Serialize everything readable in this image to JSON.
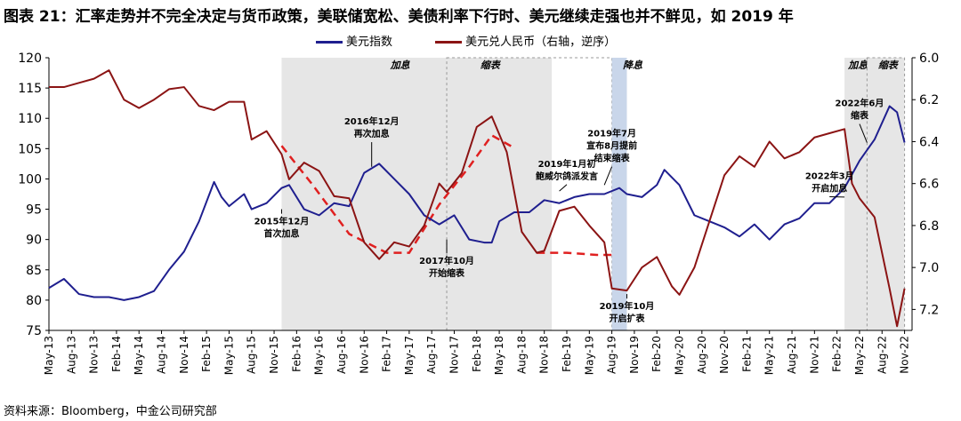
{
  "title": "图表 21：汇率走势并不完全决定与货币政策，美联储宽松、美债利率下行时、美元继续走强也并不鲜见，如 2019 年",
  "source": "资料来源：Bloomberg，中金公司研究部",
  "colors": {
    "usd_index": "#1f1f8f",
    "usdcny": "#8b1414",
    "fit": "#e02020",
    "shade_gray": "#e6e6e6",
    "shade_blue": "#c9d6ea"
  },
  "chart_data": {
    "type": "line",
    "x_ticks": [
      "May-13",
      "Aug-13",
      "Nov-13",
      "Feb-14",
      "May-14",
      "Aug-14",
      "Nov-14",
      "Feb-15",
      "May-15",
      "Aug-15",
      "Nov-15",
      "Feb-16",
      "May-16",
      "Aug-16",
      "Nov-16",
      "Feb-17",
      "May-17",
      "Aug-17",
      "Nov-17",
      "Feb-18",
      "May-18",
      "Aug-18",
      "Nov-18",
      "Feb-19",
      "May-19",
      "Aug-19",
      "Nov-19",
      "Feb-20",
      "May-20",
      "Aug-20",
      "Nov-20",
      "Feb-21",
      "May-21",
      "Aug-21",
      "Nov-21",
      "Feb-22",
      "May-22",
      "Aug-22",
      "Nov-22"
    ],
    "y_left": {
      "range": [
        75,
        120
      ],
      "ticks": [
        "120",
        "115",
        "110",
        "105",
        "100",
        "95",
        "90",
        "85",
        "80",
        "75"
      ]
    },
    "y_right": {
      "range": [
        6.0,
        7.3
      ],
      "inverted": true,
      "ticks": [
        "6.0",
        "6.2",
        "6.4",
        "6.6",
        "6.8",
        "7.0",
        "7.2"
      ]
    },
    "legend": [
      "美元指数",
      "美元兑人民币（右轴，逆序）"
    ],
    "series": [
      {
        "name": "美元指数",
        "axis": "left",
        "points": [
          [
            "May-13",
            82
          ],
          [
            "Jul-13",
            83.5
          ],
          [
            "Sep-13",
            81
          ],
          [
            "Nov-13",
            80.5
          ],
          [
            "Jan-14",
            80.5
          ],
          [
            "Mar-14",
            80
          ],
          [
            "May-14",
            80.5
          ],
          [
            "Jul-14",
            81.5
          ],
          [
            "Sep-14",
            85
          ],
          [
            "Nov-14",
            88
          ],
          [
            "Jan-15",
            93
          ],
          [
            "Mar-15",
            99.5
          ],
          [
            "Apr-15",
            97
          ],
          [
            "May-15",
            95.5
          ],
          [
            "Jul-15",
            97.5
          ],
          [
            "Aug-15",
            95
          ],
          [
            "Oct-15",
            96
          ],
          [
            "Dec-15",
            98.5
          ],
          [
            "Jan-16",
            99
          ],
          [
            "Mar-16",
            95
          ],
          [
            "May-16",
            94
          ],
          [
            "Jul-16",
            96
          ],
          [
            "Sep-16",
            95.5
          ],
          [
            "Nov-16",
            101
          ],
          [
            "Jan-17",
            102.5
          ],
          [
            "Mar-17",
            100
          ],
          [
            "May-17",
            97.5
          ],
          [
            "Jul-17",
            94
          ],
          [
            "Sep-17",
            92.5
          ],
          [
            "Nov-17",
            94
          ],
          [
            "Jan-18",
            90
          ],
          [
            "Mar-18",
            89.5
          ],
          [
            "Apr-18",
            89.5
          ],
          [
            "May-18",
            93
          ],
          [
            "Jul-18",
            94.5
          ],
          [
            "Sep-18",
            94.5
          ],
          [
            "Nov-18",
            96.5
          ],
          [
            "Jan-19",
            96
          ],
          [
            "Mar-19",
            97
          ],
          [
            "May-19",
            97.5
          ],
          [
            "Jul-19",
            97.5
          ],
          [
            "Sep-19",
            98.5
          ],
          [
            "Oct-19",
            97.5
          ],
          [
            "Dec-19",
            97
          ],
          [
            "Feb-20",
            99
          ],
          [
            "Mar-20",
            101.5
          ],
          [
            "May-20",
            99
          ],
          [
            "Jul-20",
            94
          ],
          [
            "Sep-20",
            93
          ],
          [
            "Nov-20",
            92
          ],
          [
            "Jan-21",
            90.5
          ],
          [
            "Mar-21",
            92.5
          ],
          [
            "May-21",
            90
          ],
          [
            "Jul-21",
            92.5
          ],
          [
            "Sep-21",
            93.5
          ],
          [
            "Nov-21",
            96
          ],
          [
            "Jan-22",
            96
          ],
          [
            "Mar-22",
            98.5
          ],
          [
            "May-22",
            103
          ],
          [
            "Jul-22",
            106.5
          ],
          [
            "Sep-22",
            112
          ],
          [
            "Oct-22",
            111
          ],
          [
            "Nov-22",
            106
          ]
        ]
      },
      {
        "name": "美元兑人民币（右轴，逆序）",
        "axis": "right",
        "points": [
          [
            "May-13",
            6.14
          ],
          [
            "Jul-13",
            6.14
          ],
          [
            "Sep-13",
            6.12
          ],
          [
            "Nov-13",
            6.1
          ],
          [
            "Jan-14",
            6.06
          ],
          [
            "Mar-14",
            6.2
          ],
          [
            "May-14",
            6.24
          ],
          [
            "Jul-14",
            6.2
          ],
          [
            "Sep-14",
            6.15
          ],
          [
            "Nov-14",
            6.14
          ],
          [
            "Jan-15",
            6.23
          ],
          [
            "Mar-15",
            6.25
          ],
          [
            "May-15",
            6.21
          ],
          [
            "Jul-15",
            6.21
          ],
          [
            "Aug-15",
            6.39
          ],
          [
            "Oct-15",
            6.35
          ],
          [
            "Dec-15",
            6.46
          ],
          [
            "Jan-16",
            6.58
          ],
          [
            "Mar-16",
            6.5
          ],
          [
            "May-16",
            6.54
          ],
          [
            "Jul-16",
            6.66
          ],
          [
            "Sep-16",
            6.67
          ],
          [
            "Nov-16",
            6.88
          ],
          [
            "Jan-17",
            6.96
          ],
          [
            "Mar-17",
            6.88
          ],
          [
            "May-17",
            6.9
          ],
          [
            "Jul-17",
            6.8
          ],
          [
            "Sep-17",
            6.6
          ],
          [
            "Oct-17",
            6.64
          ],
          [
            "Dec-17",
            6.55
          ],
          [
            "Feb-18",
            6.33
          ],
          [
            "Apr-18",
            6.28
          ],
          [
            "Jun-18",
            6.45
          ],
          [
            "Aug-18",
            6.83
          ],
          [
            "Oct-18",
            6.93
          ],
          [
            "Nov-18",
            6.92
          ],
          [
            "Jan-19",
            6.73
          ],
          [
            "Mar-19",
            6.71
          ],
          [
            "May-19",
            6.8
          ],
          [
            "Jul-19",
            6.88
          ],
          [
            "Aug-19",
            7.1
          ],
          [
            "Oct-19",
            7.11
          ],
          [
            "Dec-19",
            7.0
          ],
          [
            "Feb-20",
            6.95
          ],
          [
            "Apr-20",
            7.09
          ],
          [
            "May-20",
            7.13
          ],
          [
            "Jul-20",
            7.0
          ],
          [
            "Sep-20",
            6.78
          ],
          [
            "Nov-20",
            6.56
          ],
          [
            "Jan-21",
            6.47
          ],
          [
            "Mar-21",
            6.52
          ],
          [
            "May-21",
            6.4
          ],
          [
            "Jul-21",
            6.48
          ],
          [
            "Sep-21",
            6.45
          ],
          [
            "Nov-21",
            6.38
          ],
          [
            "Jan-22",
            6.36
          ],
          [
            "Mar-22",
            6.34
          ],
          [
            "Apr-22",
            6.6
          ],
          [
            "May-22",
            6.67
          ],
          [
            "Jul-22",
            6.76
          ],
          [
            "Sep-22",
            7.1
          ],
          [
            "Oct-22",
            7.28
          ],
          [
            "Nov-22",
            7.1
          ]
        ]
      }
    ],
    "fit_curves": [
      {
        "axis": "right",
        "points": [
          [
            "Dec-15",
            6.42
          ],
          [
            "Apr-16",
            6.6
          ],
          [
            "Sep-16",
            6.84
          ],
          [
            "Feb-17",
            6.93
          ],
          [
            "May-17",
            6.93
          ],
          [
            "Sep-17",
            6.7
          ],
          [
            "Jan-18",
            6.52
          ],
          [
            "Apr-18",
            6.37
          ],
          [
            "Jul-18",
            6.43
          ]
        ]
      },
      {
        "axis": "right",
        "points": [
          [
            "Oct-18",
            6.93
          ],
          [
            "Feb-19",
            6.93
          ],
          [
            "Jun-19",
            6.94
          ],
          [
            "Aug-19",
            6.94
          ]
        ]
      }
    ],
    "shaded_regions": [
      {
        "from": "Dec-15",
        "to": "Dec-18",
        "label": "加息",
        "label_at": "Feb-17",
        "style": "gray"
      },
      {
        "from": "Oct-17",
        "to": "Aug-19",
        "label": "缩表",
        "label_at": "Feb-18",
        "style": "dashed"
      },
      {
        "from": "Aug-19",
        "to": "Oct-19",
        "label": "降息",
        "label_at": "Sep-19",
        "style": "blue"
      },
      {
        "from": "Mar-22",
        "to": "Jun-22",
        "label": "加息",
        "label_at": "Mar-22",
        "style": "gray"
      },
      {
        "from": "Jun-22",
        "to": "Nov-22",
        "label": "缩表",
        "label_at": "Jul-22",
        "style": "gray_dashed"
      }
    ],
    "annotations": [
      {
        "text": [
          "2015年12月",
          "首次加息"
        ],
        "x": "Dec-15",
        "y": 92.5,
        "target": [
          [
            "Dec-15",
            95
          ]
        ]
      },
      {
        "text": [
          "2016年12月",
          "再次加息"
        ],
        "x": "Dec-16",
        "y": 109,
        "target": [
          [
            "Dec-16",
            102
          ]
        ]
      },
      {
        "text": [
          "2017年10月",
          "开始缩表"
        ],
        "x": "Oct-17",
        "y": 86,
        "target": [
          [
            "Oct-17",
            90
          ]
        ]
      },
      {
        "text": [
          "2019年1月初",
          "鲍威尔鸽派发言"
        ],
        "x": "Feb-19",
        "y": 102,
        "target": [
          [
            "Jan-19",
            98
          ]
        ]
      },
      {
        "text": [
          "2019年7月",
          "宣布8月提前",
          "结束缩表"
        ],
        "x": "Aug-19",
        "y": 107,
        "target": [
          [
            "Jul-19",
            99
          ]
        ]
      },
      {
        "text": [
          "2019年10月",
          "开启扩表"
        ],
        "x": "Oct-19",
        "y": 78.5,
        "target": [
          [
            "Oct-19",
            81
          ]
        ]
      },
      {
        "text": [
          "2022年6月",
          "缩表"
        ],
        "x": "May-22",
        "y": 112,
        "target": [
          [
            "Jun-22",
            106
          ]
        ]
      },
      {
        "text": [
          "2022年3月",
          "开启加息"
        ],
        "x": "Jan-22",
        "y": 100,
        "target": [
          [
            "Mar-22",
            97
          ]
        ]
      }
    ]
  }
}
